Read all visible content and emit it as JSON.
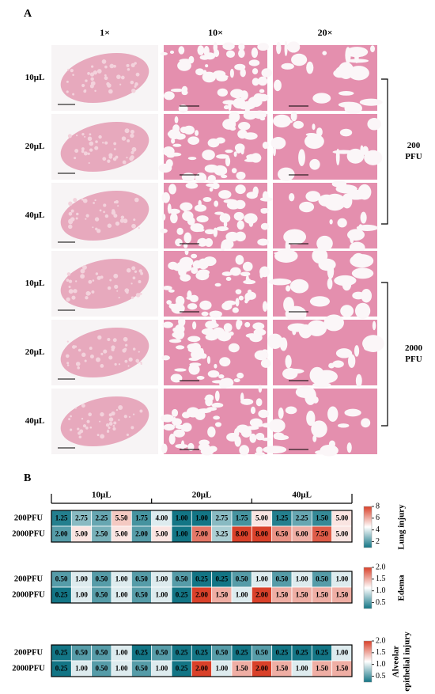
{
  "panel_a": {
    "label": "A",
    "columns": [
      "1×",
      "10×",
      "20×"
    ],
    "rows": [
      "10μL",
      "20μL",
      "40μL",
      "10μL",
      "20μL",
      "40μL"
    ],
    "groups": [
      {
        "label": [
          "200",
          "PFU"
        ]
      },
      {
        "label": [
          "2000",
          "PFU"
        ]
      }
    ]
  },
  "panel_b": {
    "label": "B",
    "column_groups": [
      "10μL",
      "20μL",
      "40μL"
    ],
    "heatmaps": [
      {
        "type": "heatmap",
        "title": [
          "Lung injury"
        ],
        "rows": [
          "200PFU",
          "2000PFU"
        ],
        "values": [
          [
            1.25,
            2.75,
            2.25,
            5.5,
            1.75,
            4,
            1,
            1,
            2.75,
            1.75,
            5,
            1.25,
            2.25,
            1.5,
            5
          ],
          [
            2,
            5,
            2.5,
            5,
            2,
            5,
            1,
            7,
            3.25,
            8,
            8,
            6.5,
            6,
            7.5,
            5
          ]
        ],
        "value_labels": [
          [
            "1.25",
            "2.75",
            "2.25",
            "5.50",
            "1.75",
            "4.00",
            "1.00",
            "1.00",
            "2.75",
            "1.75",
            "5.00",
            "1.25",
            "2.25",
            "1.50",
            "5.00"
          ],
          [
            "2.00",
            "5.00",
            "2.50",
            "5.00",
            "2.00",
            "5.00",
            "1.00",
            "7.00",
            "3.25",
            "8.00",
            "8.00",
            "6.50",
            "6.00",
            "7.50",
            "5.00"
          ]
        ],
        "clim": [
          1,
          8
        ],
        "cticks": [
          2,
          4,
          6,
          8
        ],
        "colors": [
          "#137585",
          "#ffffff",
          "#d9412a"
        ]
      },
      {
        "type": "heatmap",
        "title": [
          "Edema"
        ],
        "rows": [
          "200PFU",
          "2000PFU"
        ],
        "values": [
          [
            0.5,
            1,
            0.5,
            1,
            0.5,
            1,
            0.5,
            0.25,
            0.25,
            0.5,
            1,
            0.5,
            1,
            0.5,
            1
          ],
          [
            0.25,
            1,
            0.5,
            1,
            0.5,
            1,
            0.25,
            2,
            1.5,
            1,
            2,
            1.5,
            1.5,
            1.5,
            1.5
          ]
        ],
        "value_labels": [
          [
            "0.50",
            "1.00",
            "0.50",
            "1.00",
            "0.50",
            "1.00",
            "0.50",
            "0.25",
            "0.25",
            "0.50",
            "1.00",
            "0.50",
            "1.00",
            "0.50",
            "1.00"
          ],
          [
            "0.25",
            "1.00",
            "0.50",
            "1.00",
            "0.50",
            "1.00",
            "0.25",
            "2.00",
            "1.50",
            "1.00",
            "2.00",
            "1.50",
            "1.50",
            "1.50",
            "1.50"
          ]
        ],
        "clim": [
          0.25,
          2
        ],
        "cticks": [
          0.5,
          {
            "value": 1,
            "label": "1.0"
          },
          1.5,
          {
            "value": 2,
            "label": "2.0"
          }
        ],
        "colors": [
          "#137585",
          "#ffffff",
          "#d9412a"
        ]
      },
      {
        "type": "heatmap",
        "title": [
          "Alveolar",
          "epithelial injury"
        ],
        "rows": [
          "200PFU",
          "2000PFU"
        ],
        "values": [
          [
            0.25,
            0.5,
            0.5,
            1,
            0.25,
            0.5,
            0.25,
            0.25,
            0.5,
            0.25,
            0.5,
            0.25,
            0.25,
            0.25,
            1
          ],
          [
            0.25,
            1,
            0.5,
            1,
            0.5,
            1,
            0.25,
            2,
            1,
            1.5,
            2,
            1.5,
            1,
            1.5,
            1.5
          ]
        ],
        "value_labels": [
          [
            "0.25",
            "0.50",
            "0.50",
            "1.00",
            "0.25",
            "0.50",
            "0.25",
            "0.25",
            "0.50",
            "0.25",
            "0.50",
            "0.25",
            "0.25",
            "0.25",
            "1.00"
          ],
          [
            "0.25",
            "1.00",
            "0.50",
            "1.00",
            "0.50",
            "1.00",
            "0.25",
            "2.00",
            "1.00",
            "1.50",
            "2.00",
            "1.50",
            "1.00",
            "1.50",
            "1.50"
          ]
        ],
        "clim": [
          0.25,
          2
        ],
        "cticks": [
          0.5,
          {
            "value": 1,
            "label": "1.0"
          },
          1.5,
          {
            "value": 2,
            "label": "2.0"
          }
        ],
        "colors": [
          "#137585",
          "#ffffff",
          "#d9412a"
        ]
      }
    ]
  }
}
